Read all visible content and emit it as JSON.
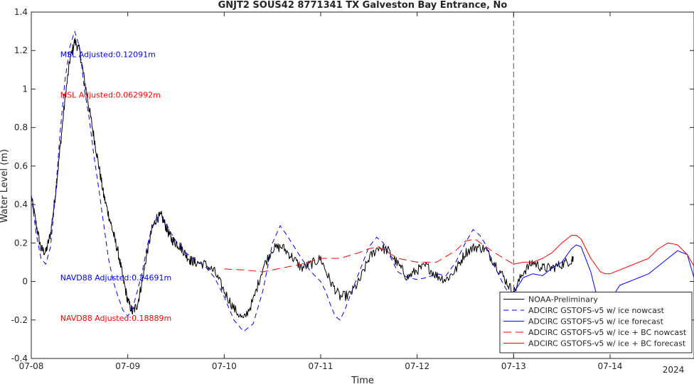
{
  "chart_data": {
    "type": "line",
    "title": "GNJT2 SOUS42 8771341 TX Galveston Bay Entrance, No",
    "xlabel": "Time",
    "ylabel": "Water Level (m)",
    "ylim": [
      -0.4,
      1.4
    ],
    "xlim": [
      0,
      6.87
    ],
    "x_unit": "days since 07-08 00:00",
    "yticks": [
      -0.4,
      -0.2,
      0,
      0.2,
      0.4,
      0.6,
      0.8,
      1,
      1.2,
      1.4
    ],
    "ytick_labels": [
      "-0.4",
      "-0.2",
      "0",
      "0.2",
      "0.4",
      "0.6",
      "0.8",
      "1",
      "1.2",
      "1.4"
    ],
    "xticks": [
      0,
      1,
      2,
      3,
      4,
      5,
      6
    ],
    "xtick_labels": [
      "07-08",
      "07-09",
      "07-10",
      "07-11",
      "07-12",
      "07-13",
      "07-14"
    ],
    "year_label": "2024",
    "grid": false,
    "legend_position": "bottom-right",
    "forecast_start_x": 5.0,
    "annotations": [
      {
        "text": "MSL Adjusted:0.12091m",
        "x": 0.3,
        "y": 1.18,
        "color": "#0000ff"
      },
      {
        "text": "MSL Adjusted:0.062992m",
        "x": 0.3,
        "y": 0.97,
        "color": "#ff0000"
      },
      {
        "text": "NAVD88 Adjusted:0.24691m",
        "x": 0.3,
        "y": 0.02,
        "color": "#0000ff"
      },
      {
        "text": "NAVD88 Adjusted:0.18889m",
        "x": 0.3,
        "y": -0.19,
        "color": "#ff0000"
      }
    ],
    "series": [
      {
        "name": "NOAA-Preliminary",
        "color": "#000000",
        "dash": "solid",
        "noise": 0.012,
        "x": [
          0,
          0.05,
          0.1,
          0.15,
          0.2,
          0.25,
          0.3,
          0.35,
          0.4,
          0.45,
          0.5,
          0.55,
          0.6,
          0.65,
          0.7,
          0.75,
          0.8,
          0.85,
          0.9,
          0.95,
          1.0,
          1.05,
          1.1,
          1.15,
          1.2,
          1.25,
          1.3,
          1.35,
          1.4,
          1.45,
          1.5,
          1.55,
          1.6,
          1.65,
          1.7,
          1.8,
          1.9,
          2.0,
          2.1,
          2.2,
          2.3,
          2.4,
          2.5,
          2.6,
          2.7,
          2.8,
          2.9,
          3.0,
          3.1,
          3.2,
          3.3,
          3.4,
          3.5,
          3.6,
          3.7,
          3.8,
          3.9,
          4.0,
          4.1,
          4.2,
          4.3,
          4.4,
          4.5,
          4.6,
          4.7,
          4.8,
          4.9,
          5.0,
          5.1,
          5.2,
          5.3,
          5.4,
          5.5,
          5.6,
          5.62
        ],
        "y": [
          0.44,
          0.3,
          0.17,
          0.15,
          0.25,
          0.45,
          0.7,
          0.95,
          1.15,
          1.25,
          1.2,
          1.05,
          0.9,
          0.75,
          0.6,
          0.45,
          0.35,
          0.25,
          0.15,
          0.02,
          -0.1,
          -0.16,
          -0.12,
          0.0,
          0.15,
          0.27,
          0.33,
          0.34,
          0.28,
          0.22,
          0.2,
          0.18,
          0.14,
          0.11,
          0.1,
          0.09,
          0.05,
          -0.05,
          -0.14,
          -0.2,
          -0.1,
          0.07,
          0.17,
          0.18,
          0.13,
          0.07,
          0.09,
          0.12,
          0.0,
          -0.08,
          -0.07,
          0.0,
          0.12,
          0.18,
          0.16,
          0.09,
          0.02,
          0.06,
          0.08,
          0.03,
          0.01,
          0.06,
          0.15,
          0.18,
          0.17,
          0.1,
          0.02,
          -0.06,
          0.05,
          0.1,
          0.07,
          0.07,
          0.09,
          0.11,
          0.13
        ]
      },
      {
        "name": "ADCIRC GSTOFS-v5  w/ ice nowcast",
        "color": "#0000ff",
        "dash": "7,5",
        "noise": 0,
        "x": [
          0,
          0.05,
          0.1,
          0.15,
          0.2,
          0.25,
          0.3,
          0.35,
          0.4,
          0.45,
          0.5,
          0.55,
          0.6,
          0.65,
          0.7,
          0.75,
          0.8,
          0.85,
          0.9,
          0.95,
          1.0,
          1.05,
          1.1,
          1.15,
          1.2,
          1.25,
          1.3,
          1.35,
          1.4,
          1.45,
          1.5,
          1.6,
          1.7,
          1.8,
          1.9,
          2.0,
          2.1,
          2.2,
          2.3,
          2.4,
          2.5,
          2.58,
          2.65,
          2.7,
          2.8,
          2.9,
          3.0,
          3.05,
          3.1,
          3.15,
          3.2,
          3.25,
          3.3,
          3.4,
          3.5,
          3.58,
          3.65,
          3.7,
          3.8,
          3.9,
          4.0,
          4.1,
          4.2,
          4.3,
          4.4,
          4.5,
          4.58,
          4.65,
          4.7,
          4.8,
          4.9,
          4.97,
          5.0
        ],
        "y": [
          0.45,
          0.25,
          0.12,
          0.09,
          0.18,
          0.45,
          0.78,
          1.05,
          1.22,
          1.3,
          1.22,
          1.0,
          0.85,
          0.65,
          0.48,
          0.3,
          0.12,
          0.0,
          -0.08,
          -0.15,
          -0.18,
          -0.14,
          -0.05,
          0.05,
          0.18,
          0.28,
          0.33,
          0.34,
          0.3,
          0.25,
          0.21,
          0.15,
          0.11,
          0.08,
          0.02,
          -0.08,
          -0.2,
          -0.26,
          -0.22,
          -0.05,
          0.2,
          0.29,
          0.24,
          0.2,
          0.12,
          0.05,
          0.0,
          -0.05,
          -0.12,
          -0.18,
          -0.2,
          -0.15,
          -0.08,
          0.05,
          0.18,
          0.23,
          0.2,
          0.15,
          0.05,
          0.02,
          0.01,
          0.02,
          0.04,
          0.03,
          0.1,
          0.2,
          0.27,
          0.24,
          0.2,
          0.08,
          -0.02,
          -0.08,
          -0.05
        ]
      },
      {
        "name": "ADCIRC GSTOFS-v5  w/ ice forecast",
        "color": "#0000ff",
        "dash": "solid",
        "noise": 0,
        "x": [
          5.0,
          5.1,
          5.2,
          5.3,
          5.4,
          5.5,
          5.6,
          5.65,
          5.7,
          5.8,
          5.85,
          5.9,
          5.95,
          6.0,
          6.1,
          6.2,
          6.3,
          6.4,
          6.5,
          6.6,
          6.7,
          6.8,
          6.87
        ],
        "y": [
          -0.06,
          0.02,
          0.04,
          0.03,
          0.07,
          0.1,
          0.17,
          0.19,
          0.18,
          0.05,
          -0.05,
          -0.12,
          -0.13,
          -0.1,
          -0.02,
          0.0,
          0.02,
          0.04,
          0.08,
          0.12,
          0.16,
          0.14,
          0.02
        ]
      },
      {
        "name": "ADCIRC GSTOFS-v5  w/ ice + BC nowcast",
        "color": "#ff0000",
        "dash": "11,6",
        "noise": 0,
        "x": [
          2.0,
          2.2,
          2.4,
          2.6,
          2.8,
          3.0,
          3.2,
          3.4,
          3.5,
          3.6,
          3.8,
          4.0,
          4.2,
          4.4,
          4.5,
          4.6,
          4.8,
          5.0
        ],
        "y": [
          0.065,
          0.06,
          0.05,
          0.07,
          0.09,
          0.12,
          0.12,
          0.15,
          0.17,
          0.18,
          0.12,
          0.1,
          0.1,
          0.16,
          0.21,
          0.22,
          0.15,
          0.09
        ]
      },
      {
        "name": "ADCIRC GSTOFS-v5  w/ ice + BC forecast",
        "color": "#ff0000",
        "dash": "solid",
        "noise": 0,
        "x": [
          5.0,
          5.1,
          5.2,
          5.3,
          5.4,
          5.5,
          5.6,
          5.65,
          5.7,
          5.8,
          5.9,
          5.95,
          6.0,
          6.1,
          6.2,
          6.3,
          6.4,
          6.5,
          6.6,
          6.7,
          6.8,
          6.87
        ],
        "y": [
          0.09,
          0.1,
          0.1,
          0.12,
          0.15,
          0.2,
          0.24,
          0.24,
          0.22,
          0.12,
          0.05,
          0.04,
          0.04,
          0.06,
          0.08,
          0.1,
          0.12,
          0.17,
          0.2,
          0.19,
          0.14,
          0.08
        ]
      }
    ]
  }
}
